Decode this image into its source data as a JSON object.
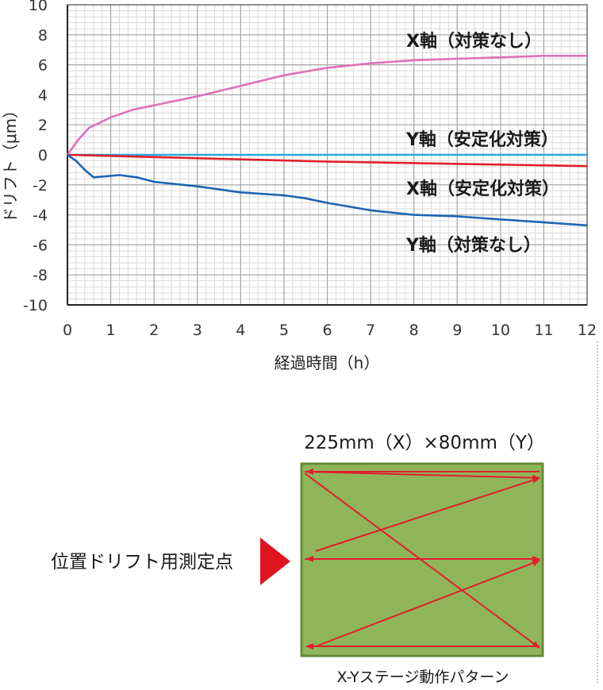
{
  "chart_data": {
    "type": "line",
    "title": "",
    "xlabel": "経過時間（h）",
    "ylabel": "ドリフト（μm）",
    "xlim": [
      0,
      12
    ],
    "ylim": [
      -10,
      10
    ],
    "x_ticks": [
      "0",
      "1",
      "2",
      "3",
      "4",
      "5",
      "6",
      "7",
      "8",
      "9",
      "10",
      "11",
      "12"
    ],
    "y_ticks": [
      "10",
      "8",
      "6",
      "4",
      "2",
      "0",
      "-2",
      "-4",
      "-6",
      "-8",
      "-10"
    ],
    "grid": true,
    "legend": "inline labels at right",
    "series": [
      {
        "name": "X軸（対策なし）",
        "color": "#e070b8",
        "x": [
          0,
          0.25,
          0.5,
          1,
          1.5,
          2,
          3,
          4,
          5,
          6,
          7,
          8,
          9,
          10,
          11,
          12
        ],
        "y": [
          0,
          1.0,
          1.8,
          2.5,
          3.0,
          3.3,
          3.9,
          4.6,
          5.3,
          5.8,
          6.1,
          6.3,
          6.4,
          6.5,
          6.6,
          6.6
        ]
      },
      {
        "name": "Y軸（安定化対策）",
        "color": "#2aa8dc",
        "x": [
          0,
          3,
          6,
          9,
          12
        ],
        "y": [
          0,
          0,
          0,
          0,
          0
        ]
      },
      {
        "name": "X軸（安定化対策）",
        "color": "#e0202a",
        "x": [
          0,
          2,
          4,
          6,
          8,
          10,
          12
        ],
        "y": [
          0,
          -0.15,
          -0.3,
          -0.45,
          -0.55,
          -0.65,
          -0.75
        ]
      },
      {
        "name": "Y軸（対策なし）",
        "color": "#1f64b4",
        "x": [
          0,
          0.2,
          0.4,
          0.6,
          0.8,
          1.2,
          1.6,
          2,
          3,
          4,
          5,
          5.5,
          6,
          7,
          8,
          9,
          10,
          11,
          12
        ],
        "y": [
          0,
          -0.4,
          -1.0,
          -1.5,
          -1.45,
          -1.35,
          -1.5,
          -1.8,
          -2.1,
          -2.5,
          -2.7,
          -2.9,
          -3.2,
          -3.7,
          -4.0,
          -4.1,
          -4.3,
          -4.5,
          -4.7
        ]
      }
    ]
  },
  "stage": {
    "title": "225mm（X）×80mm（Y）",
    "caption": "X-Yステージ動作パターン",
    "marker_label": "位置ドリフト用測定点",
    "fill_color": "#8fb55a",
    "border_color": "#6a8a3a",
    "path_color": "#e0202a"
  }
}
